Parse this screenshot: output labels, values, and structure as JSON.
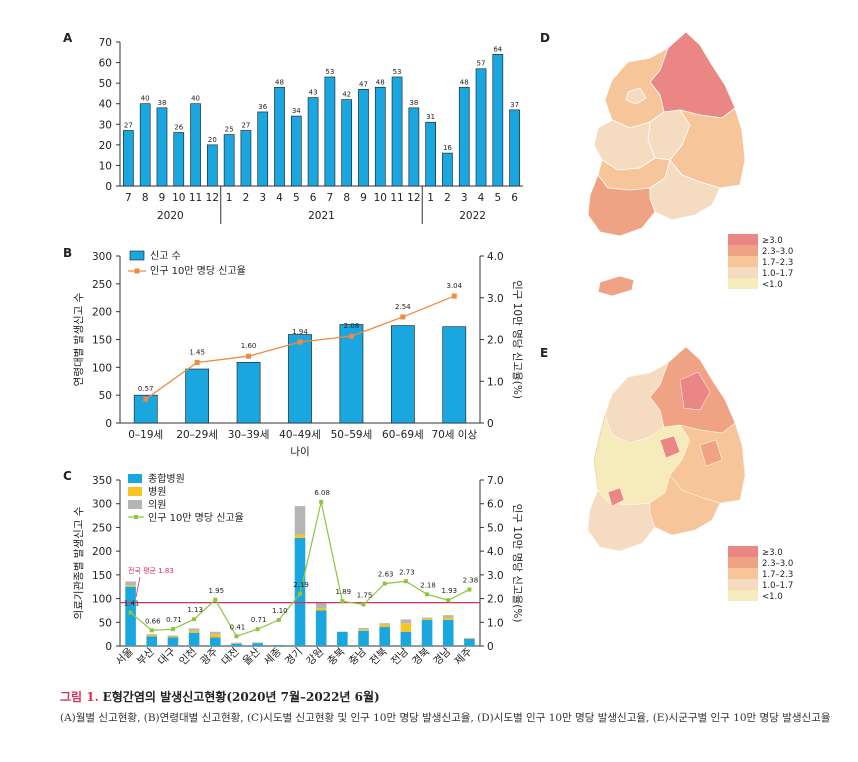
{
  "colors": {
    "bar": "#1aa6df",
    "bar_edge": "#1a1a1a",
    "line": "#f08a3e",
    "green": "#8cc63f",
    "national_line": "#d2325a",
    "hospital": "#f7c325",
    "clinic": "#b5b5b5",
    "map_ge3": "#ea8784",
    "map_23_30": "#f0a384",
    "map_17_23": "#f7c59a",
    "map_10_17": "#f5dcc0",
    "map_lt1": "#f6ebbb"
  },
  "chart_data": [
    {
      "panel": "A",
      "type": "bar",
      "ylim": [
        0,
        70
      ],
      "yticks": [
        0,
        10,
        20,
        30,
        40,
        50,
        60,
        70
      ],
      "months": [
        "7",
        "8",
        "9",
        "10",
        "11",
        "12",
        "1",
        "2",
        "3",
        "4",
        "5",
        "6",
        "7",
        "8",
        "9",
        "10",
        "11",
        "12",
        "1",
        "2",
        "3",
        "4",
        "5",
        "6"
      ],
      "years": [
        {
          "label": "2020",
          "start": 0,
          "end": 5
        },
        {
          "label": "2021",
          "start": 6,
          "end": 17
        },
        {
          "label": "2022",
          "start": 18,
          "end": 23
        }
      ],
      "values": [
        27,
        40,
        38,
        26,
        40,
        20,
        25,
        27,
        36,
        48,
        34,
        43,
        53,
        42,
        47,
        48,
        53,
        38,
        31,
        16,
        48,
        57,
        64,
        37
      ]
    },
    {
      "panel": "B",
      "type": "bar+line",
      "ylabel": "연령대별 발생신고 수",
      "y2label": "인구 10만 명당 신고율(%)",
      "xlabel": "나이",
      "ylim": [
        0,
        300
      ],
      "yticks": [
        0,
        50,
        100,
        150,
        200,
        250,
        300
      ],
      "y2lim": [
        0,
        4.0
      ],
      "y2ticks": [
        "0",
        "1.0",
        "2.0",
        "3.0",
        "4.0"
      ],
      "categories": [
        "0–19세",
        "20–29세",
        "30–39세",
        "40–49세",
        "50–59세",
        "60–69세",
        "70세 이상"
      ],
      "legend": [
        "신고 수",
        "인구 10만 명당 신고율"
      ],
      "counts": [
        50,
        97,
        109,
        159,
        177,
        175,
        173
      ],
      "rates": [
        0.57,
        1.45,
        1.6,
        1.94,
        2.08,
        2.54,
        3.04
      ],
      "rate_labels": [
        "0.57",
        "1.45",
        "1.60",
        "1.94",
        "2.08",
        "2.54",
        "3.04"
      ]
    },
    {
      "panel": "C",
      "type": "stacked-bar+line",
      "ylabel": "의료기관종별 발생신고 수",
      "y2label": "인구 10만 명당 신고율(%)",
      "ylim": [
        0,
        350
      ],
      "yticks": [
        0,
        50,
        100,
        150,
        200,
        250,
        300,
        350
      ],
      "y2lim": [
        0,
        7.0
      ],
      "y2ticks": [
        "0",
        "1.0",
        "2.0",
        "3.0",
        "4.0",
        "5.0",
        "6.0",
        "7.0"
      ],
      "categories": [
        "서울",
        "부산",
        "대구",
        "인천",
        "광주",
        "대전",
        "울산",
        "세종",
        "경기",
        "강원",
        "충북",
        "충남",
        "전북",
        "전남",
        "경북",
        "경남",
        "제주"
      ],
      "legend": [
        "종합병원",
        "병원",
        "의원",
        "인구 10만 명당 신고율"
      ],
      "general": [
        125,
        20,
        18,
        28,
        18,
        5,
        6,
        2,
        228,
        75,
        30,
        32,
        40,
        30,
        55,
        55,
        15
      ],
      "hospital": [
        3,
        3,
        2,
        4,
        7,
        1,
        1,
        0,
        7,
        5,
        0,
        3,
        5,
        18,
        3,
        5,
        1
      ],
      "clinic": [
        8,
        2,
        2,
        5,
        5,
        1,
        1,
        0,
        60,
        13,
        0,
        3,
        3,
        8,
        2,
        5,
        1
      ],
      "rates": [
        1.41,
        0.66,
        0.71,
        1.13,
        1.95,
        0.41,
        0.71,
        1.1,
        2.19,
        6.08,
        1.89,
        1.75,
        2.63,
        2.73,
        2.18,
        1.93,
        2.38
      ],
      "rate_labels": [
        "1.41",
        "0.66",
        "0.71",
        "1.13",
        "1.95",
        "0.41",
        "0.71",
        "1.10",
        "2.19",
        "6.08",
        "1.89",
        "1.75",
        "2.63",
        "2.73",
        "2.18",
        "1.93",
        "2.38"
      ],
      "national_avg_label": "전국 평균 1.83",
      "national_avg": 1.83
    }
  ],
  "maps": {
    "D_label": "D",
    "E_label": "E",
    "legend": [
      "≥3.0",
      "2.3–3.0",
      "1.7–2.3",
      "1.0–1.7",
      "<1.0"
    ]
  },
  "caption": {
    "label": "그림 1.",
    "title": "E형간염의 발생신고현황(2020년 7월–2022년 6월)",
    "description": "(A)월별 신고현황, (B)연령대별 신고현황, (C)시도별 신고현황 및 인구 10만 명당 발생신고율, (D)시도별 인구 10만 명당 발생신고율, (E)시군구별 인구 10만 명당 발생신고율"
  }
}
